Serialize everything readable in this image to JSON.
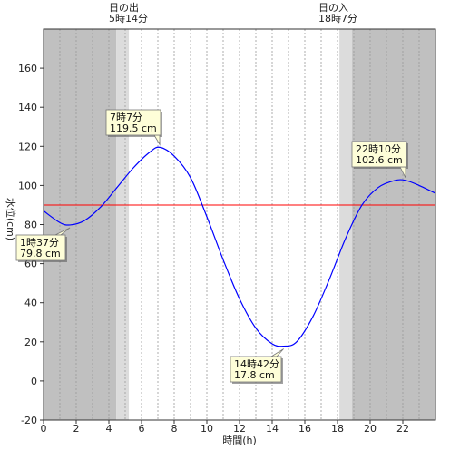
{
  "chart_data": {
    "type": "line",
    "xlabel": "時間(h)",
    "ylabel": "水位(cm)",
    "xlim": [
      0,
      24
    ],
    "ylim": [
      -20,
      180
    ],
    "x_ticks": [
      0,
      2,
      4,
      6,
      8,
      10,
      12,
      14,
      16,
      18,
      20,
      22
    ],
    "y_ticks": [
      -20,
      0,
      20,
      40,
      60,
      80,
      100,
      120,
      140,
      160
    ],
    "grid": true,
    "sunrise": {
      "label": "日の出",
      "time_text": "5時14分",
      "hour": 5.233
    },
    "sunset": {
      "label": "日の入",
      "time_text": "18時7分",
      "hour": 18.117
    },
    "reference_line": {
      "value": 90,
      "color": "#ff0000"
    },
    "series": [
      {
        "color": "#0000ff",
        "x": [
          0,
          1,
          1.617,
          2.5,
          3.5,
          4.5,
          5.5,
          6.5,
          7.117,
          8,
          9,
          10,
          11,
          12,
          13,
          14,
          14.7,
          15.5,
          16.5,
          17.5,
          18.5,
          19.5,
          20.5,
          21.5,
          22.167,
          23,
          24
        ],
        "y": [
          87,
          81,
          79.8,
          82,
          89,
          99,
          109,
          117,
          119.5,
          115,
          104,
          84,
          62,
          42,
          27,
          19,
          17.8,
          20,
          33,
          52,
          73,
          90,
          99,
          102.5,
          102.6,
          100,
          96
        ]
      }
    ],
    "annotations": [
      {
        "time": "1時37分",
        "level": "79.8 cm",
        "x": 1.617,
        "y": 79.8,
        "side": "below"
      },
      {
        "time": "7時7分",
        "level": "119.5 cm",
        "x": 7.117,
        "y": 119.5,
        "side": "above"
      },
      {
        "time": "14時42分",
        "level": "17.8 cm",
        "x": 14.7,
        "y": 17.8,
        "side": "below"
      },
      {
        "time": "22時10分",
        "level": "102.6 cm",
        "x": 22.167,
        "y": 102.6,
        "side": "above"
      }
    ]
  }
}
